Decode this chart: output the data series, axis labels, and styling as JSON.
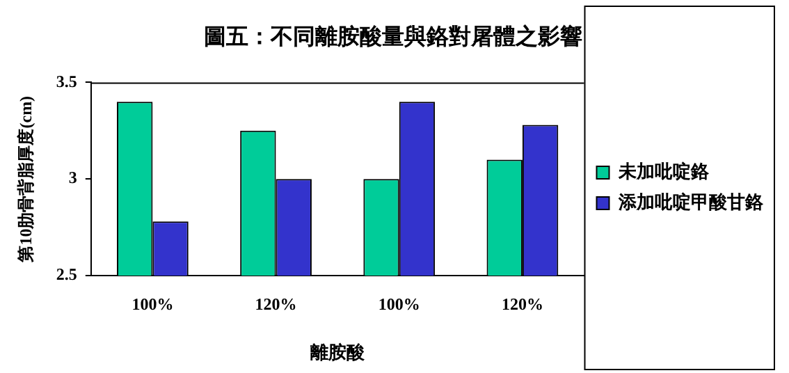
{
  "chart_data": {
    "type": "bar",
    "title": "圖五：不同離胺酸量與鉻對屠體之影響",
    "xlabel": "離胺酸",
    "ylabel": "第10肋骨背脂厚度(cm)",
    "categories": [
      "100%",
      "120%",
      "100%",
      "120%"
    ],
    "series": [
      {
        "name": "未加吡啶鉻",
        "color": "#00cc99",
        "values": [
          3.4,
          3.25,
          3.0,
          3.1
        ]
      },
      {
        "name": "添加吡啶甲酸甘鉻",
        "color": "#3333cc",
        "values": [
          2.78,
          3.0,
          3.4,
          3.28
        ]
      }
    ],
    "ylim": [
      2.5,
      3.5
    ],
    "yticks": [
      2.5,
      3,
      3.5
    ],
    "grid": false,
    "legend": "right"
  }
}
